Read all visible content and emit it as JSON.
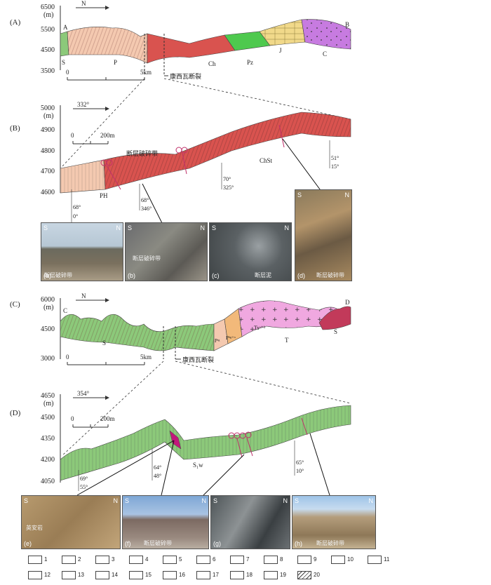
{
  "panels": {
    "A": {
      "tag": "(A)",
      "unit": "(m)",
      "north": "N",
      "yticks": [
        "6500",
        "5500",
        "4500",
        "3500"
      ],
      "endpoints": [
        "A",
        "B"
      ],
      "units": [
        "S",
        "P",
        "Ch",
        "Pz",
        "J",
        "C"
      ],
      "scale": [
        "0",
        "5km"
      ],
      "fault": "康西瓦断裂"
    },
    "B": {
      "tag": "(B)",
      "unit": "(m)",
      "azimuth": "332°",
      "yticks": [
        "5000",
        "4900",
        "4800",
        "4700",
        "4600"
      ],
      "scale": [
        "0",
        "200m"
      ],
      "zone": "断层破碎带",
      "unit_left": "PH",
      "unit_right": "ChSt",
      "attitudes": [
        [
          "68°",
          "0°"
        ],
        [
          "68°",
          "346°"
        ],
        [
          "70°",
          "325°"
        ],
        [
          "51°",
          "15°"
        ]
      ]
    },
    "C": {
      "tag": "(C)",
      "unit": "(m)",
      "north": "N",
      "yticks": [
        "6000",
        "4500",
        "3000"
      ],
      "endpoints": [
        "C",
        "D"
      ],
      "units": [
        "S",
        "Pᵗᵍ",
        "Pᵇᵍ⁺ˣ",
        "Tsᵃ⁺ᵇ",
        "T",
        "S"
      ],
      "scale": [
        "0",
        "5km"
      ],
      "fault": "康西瓦断裂"
    },
    "D": {
      "tag": "(D)",
      "unit": "(m)",
      "azimuth": "354°",
      "yticks": [
        "4650",
        "4500",
        "4350",
        "4200",
        "4050"
      ],
      "scale": [
        "0",
        "200m"
      ],
      "unit_label": "S₁w",
      "attitudes": [
        [
          "69°",
          "55°"
        ],
        [
          "64°",
          "48°"
        ],
        [
          "65°",
          "10°"
        ]
      ]
    }
  },
  "photos_top": [
    {
      "label": "(a)",
      "s": "S",
      "n": "N",
      "caption": "断层破碎带"
    },
    {
      "label": "(b)",
      "s": "S",
      "n": "N",
      "caption": "断层破碎带"
    },
    {
      "label": "(c)",
      "s": "S",
      "n": "N",
      "caption": "断层泥"
    },
    {
      "label": "(d)",
      "s": "S",
      "n": "N",
      "caption": "断层破碎带"
    }
  ],
  "photos_bottom": [
    {
      "label": "(e)",
      "s": "S",
      "n": "N",
      "caption": "英安岩"
    },
    {
      "label": "(f)",
      "s": "S",
      "n": "N",
      "caption": "断层破碎带"
    },
    {
      "label": "(g)",
      "s": "S",
      "n": "N",
      "caption": ""
    },
    {
      "label": "(h)",
      "s": "S",
      "n": "N",
      "caption": "断层破碎带"
    }
  ],
  "legend": [
    "1",
    "2",
    "3",
    "4",
    "5",
    "6",
    "7",
    "8",
    "9",
    "10",
    "11",
    "12",
    "13",
    "14",
    "15",
    "16",
    "17",
    "18",
    "19",
    "20"
  ],
  "colors": {
    "salmon": "#f4c9b0",
    "red": "#d9534f",
    "green": "#8cc97a",
    "lime": "#4ec94e",
    "yellow": "#f1d98a",
    "purple": "#c77be0",
    "pink": "#f0a8e0",
    "orange": "#f2b97a",
    "crimson": "#c23a5a"
  }
}
